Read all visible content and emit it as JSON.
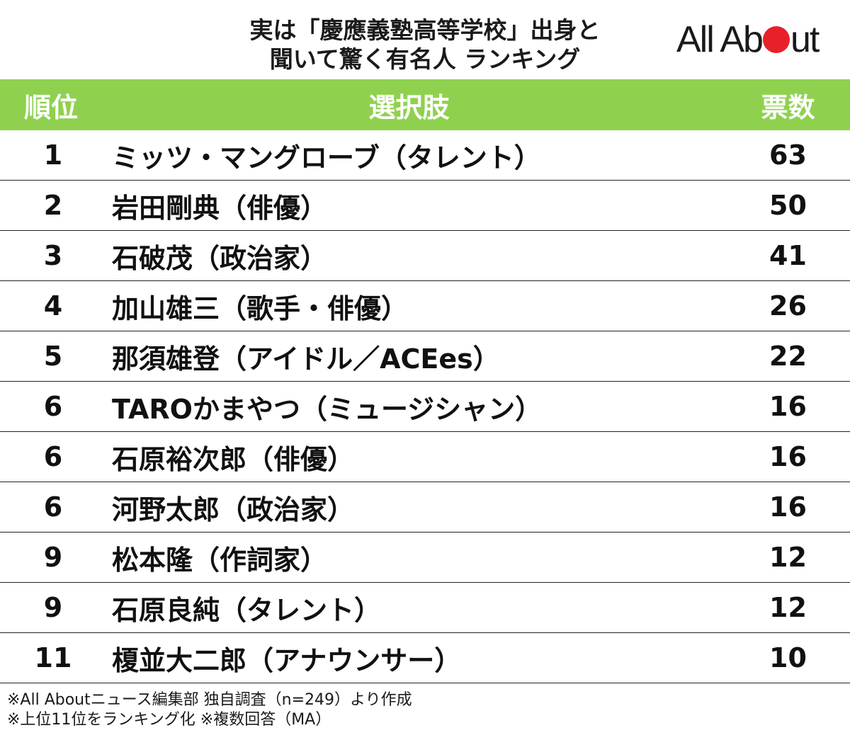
{
  "header": {
    "title_line1": "実は「慶應義塾高等学校」出身と",
    "title_line2": "聞いて驚く有名人 ランキング",
    "logo_left": "All Ab",
    "logo_right": "ut",
    "logo_dot_color": "#e8202a"
  },
  "colors": {
    "header_green": "#8fd14f",
    "header_text": "#ffffff",
    "row_border": "#222222"
  },
  "chart_data": {
    "type": "table",
    "columns": [
      "順位",
      "選択肢",
      "票数"
    ],
    "rows": [
      {
        "rank": "1",
        "name": "ミッツ・マングローブ（タレント）",
        "votes": 63
      },
      {
        "rank": "2",
        "name": "岩田剛典（俳優）",
        "votes": 50
      },
      {
        "rank": "3",
        "name": "石破茂（政治家）",
        "votes": 41
      },
      {
        "rank": "4",
        "name": "加山雄三（歌手・俳優）",
        "votes": 26
      },
      {
        "rank": "5",
        "name": "那須雄登（アイドル／ACEes）",
        "votes": 22
      },
      {
        "rank": "6",
        "name": "TAROかまやつ（ミュージシャン）",
        "votes": 16
      },
      {
        "rank": "6",
        "name": "石原裕次郎（俳優）",
        "votes": 16
      },
      {
        "rank": "6",
        "name": "河野太郎（政治家）",
        "votes": 16
      },
      {
        "rank": "9",
        "name": "松本隆（作詞家）",
        "votes": 12
      },
      {
        "rank": "9",
        "name": "石原良純（タレント）",
        "votes": 12
      },
      {
        "rank": "11",
        "name": "榎並大二郎（アナウンサー）",
        "votes": 10
      }
    ]
  },
  "footer": {
    "note1": "※All Aboutニュース編集部 独自調査（n=249）より作成",
    "note2": "※上位11位をランキング化 ※複数回答（MA）"
  }
}
